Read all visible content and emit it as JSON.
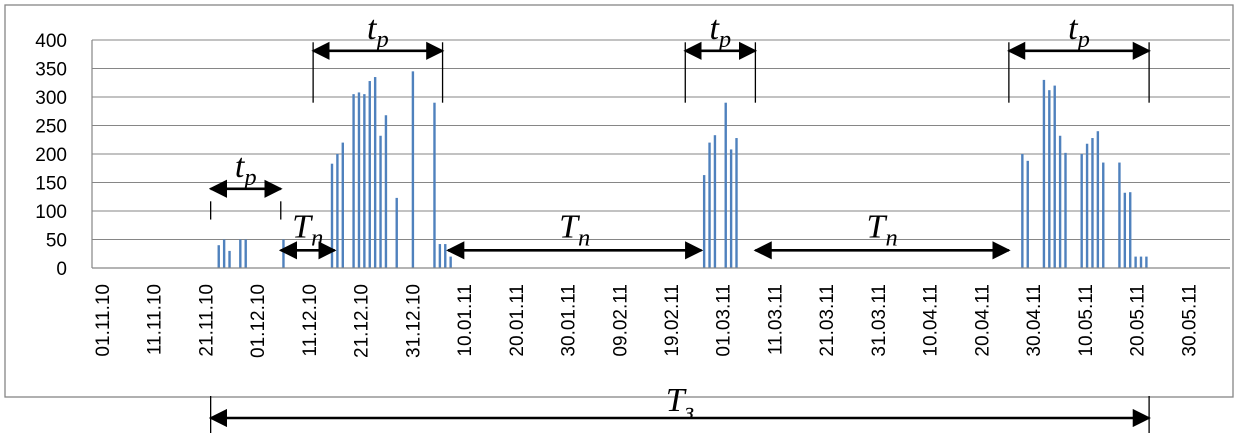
{
  "chart_data": {
    "type": "bar",
    "title": "",
    "xlabel": "",
    "ylabel": "",
    "ylim": [
      0,
      400
    ],
    "yticks": [
      0,
      50,
      100,
      150,
      200,
      250,
      300,
      350,
      400
    ],
    "xlim": [
      "2010-11-01",
      "2011-05-30"
    ],
    "xtick_labels": [
      "01.11.10",
      "11.11.10",
      "21.11.10",
      "01.12.10",
      "11.12.10",
      "21.12.10",
      "31.12.10",
      "10.01.11",
      "20.01.11",
      "30.01.11",
      "09.02.11",
      "19.02.11",
      "01.03.11",
      "11.03.11",
      "21.03.11",
      "31.03.11",
      "10.04.11",
      "20.04.11",
      "30.04.11",
      "10.05.11",
      "20.05.11",
      "30.05.11"
    ],
    "grid": true,
    "bar_color": "#4f81bd",
    "x": [
      "2010-11-24",
      "2010-11-25",
      "2010-11-26",
      "2010-11-28",
      "2010-11-29",
      "2010-12-06",
      "2010-12-15",
      "2010-12-16",
      "2010-12-17",
      "2010-12-19",
      "2010-12-20",
      "2010-12-21",
      "2010-12-22",
      "2010-12-23",
      "2010-12-24",
      "2010-12-25",
      "2010-12-27",
      "2010-12-30",
      "2011-01-03",
      "2011-01-04",
      "2011-01-05",
      "2011-01-06",
      "2011-02-22",
      "2011-02-23",
      "2011-02-24",
      "2011-02-26",
      "2011-02-27",
      "2011-02-28",
      "2011-04-22",
      "2011-04-23",
      "2011-04-26",
      "2011-04-27",
      "2011-04-28",
      "2011-04-29",
      "2011-04-30",
      "2011-05-03",
      "2011-05-04",
      "2011-05-05",
      "2011-05-06",
      "2011-05-07",
      "2011-05-10",
      "2011-05-11",
      "2011-05-12",
      "2011-05-13",
      "2011-05-14",
      "2011-05-15"
    ],
    "values": [
      40,
      50,
      30,
      50,
      50,
      50,
      183,
      200,
      220,
      305,
      308,
      305,
      328,
      335,
      232,
      268,
      123,
      345,
      290,
      42,
      42,
      20,
      163,
      220,
      233,
      290,
      208,
      228,
      200,
      188,
      330,
      312,
      320,
      232,
      202,
      200,
      218,
      228,
      240,
      185,
      185,
      132,
      133,
      20,
      20,
      20
    ],
    "annotations": [
      {
        "kind": "span",
        "label_main": "t",
        "label_sub": "p",
        "from": "2010-11-23",
        "to": "2010-12-06",
        "y": 139,
        "bracket_top": 117,
        "bracket_bottom": 85
      },
      {
        "kind": "span",
        "label_main": "t",
        "label_sub": "p",
        "from": "2010-12-12",
        "to": "2011-01-05",
        "y": 381,
        "bracket_top": 396,
        "bracket_bottom": 290
      },
      {
        "kind": "span",
        "label_main": "t",
        "label_sub": "p",
        "from": "2011-02-19",
        "to": "2011-03-04",
        "y": 381,
        "bracket_top": 396,
        "bracket_bottom": 290
      },
      {
        "kind": "span",
        "label_main": "t",
        "label_sub": "p",
        "from": "2011-04-20",
        "to": "2011-05-16",
        "y": 381,
        "bracket_top": 396,
        "bracket_bottom": 290
      },
      {
        "kind": "span",
        "label_main": "T",
        "label_sub": "n",
        "from": "2010-12-06",
        "to": "2010-12-16",
        "y": 31,
        "bracket_top": null,
        "bracket_bottom": null
      },
      {
        "kind": "span",
        "label_main": "T",
        "label_sub": "n",
        "from": "2011-01-06",
        "to": "2011-02-22",
        "y": 31,
        "bracket_top": null,
        "bracket_bottom": null
      },
      {
        "kind": "span",
        "label_main": "T",
        "label_sub": "n",
        "from": "2011-03-04",
        "to": "2011-04-20",
        "y": 31,
        "bracket_top": null,
        "bracket_bottom": null
      }
    ],
    "bottom_annotation": {
      "label_main": "T",
      "label_sub": "з",
      "from": "2010-11-23",
      "to": "2011-05-16"
    }
  }
}
